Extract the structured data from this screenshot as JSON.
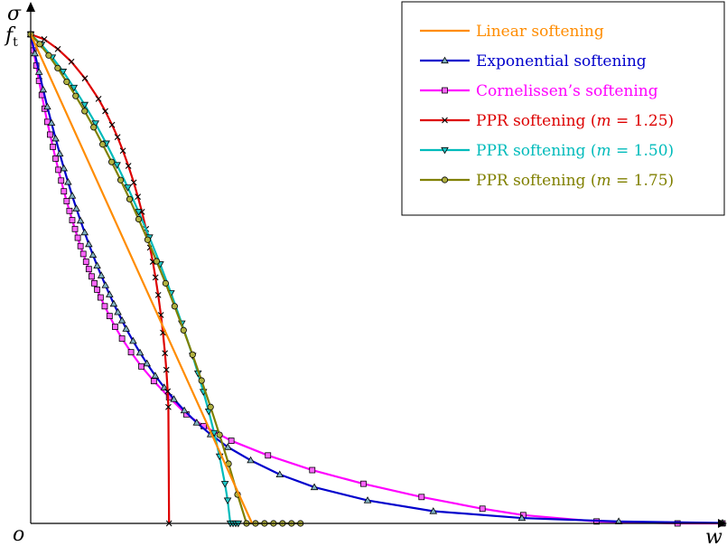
{
  "chart_data": {
    "type": "line",
    "title": "",
    "xlabel": "w",
    "ylabel": "σ",
    "y_tick_label": "f_t",
    "y_tick_label_main": "f",
    "y_tick_label_sub": "t",
    "origin_label": "o",
    "xlim": [
      0,
      1
    ],
    "ylim": [
      0,
      1
    ],
    "y_tick_value": 1.0,
    "legend_position": "top-right",
    "series": [
      {
        "name": "Linear softening",
        "label_plain": "Linear softening",
        "color": "#ff8c00",
        "marker": "none",
        "x": [
          0,
          0.32
        ],
        "y": [
          1.0,
          0.0
        ]
      },
      {
        "name": "Exponential softening",
        "label_plain": "Exponential softening",
        "color": "#0000cc",
        "marker": "triangle-up",
        "x": [
          0,
          0.006,
          0.012,
          0.018,
          0.024,
          0.03,
          0.036,
          0.042,
          0.048,
          0.054,
          0.06,
          0.066,
          0.072,
          0.078,
          0.084,
          0.09,
          0.096,
          0.102,
          0.108,
          0.114,
          0.12,
          0.126,
          0.132,
          0.138,
          0.148,
          0.158,
          0.168,
          0.18,
          0.193,
          0.207,
          0.222,
          0.24,
          0.26,
          0.285,
          0.318,
          0.36,
          0.41,
          0.487,
          0.582,
          0.71,
          0.85,
          1.0
        ],
        "y": [
          1.0,
          0.961,
          0.923,
          0.887,
          0.852,
          0.819,
          0.787,
          0.756,
          0.726,
          0.698,
          0.67,
          0.644,
          0.619,
          0.595,
          0.571,
          0.549,
          0.527,
          0.507,
          0.487,
          0.468,
          0.449,
          0.432,
          0.415,
          0.398,
          0.373,
          0.349,
          0.327,
          0.302,
          0.278,
          0.254,
          0.231,
          0.206,
          0.182,
          0.156,
          0.129,
          0.1,
          0.074,
          0.047,
          0.025,
          0.011,
          0.004,
          0.001
        ]
      },
      {
        "name": "Cornelissen's softening",
        "label_plain": "Cornelissen’s softening",
        "color": "#ff00ff",
        "marker": "square",
        "x": [
          0,
          0.004,
          0.008,
          0.012,
          0.016,
          0.02,
          0.024,
          0.028,
          0.032,
          0.036,
          0.04,
          0.044,
          0.048,
          0.052,
          0.056,
          0.06,
          0.064,
          0.068,
          0.072,
          0.076,
          0.08,
          0.084,
          0.088,
          0.092,
          0.096,
          0.101,
          0.107,
          0.114,
          0.122,
          0.132,
          0.145,
          0.16,
          0.178,
          0.2,
          0.225,
          0.25,
          0.29,
          0.343,
          0.407,
          0.481,
          0.565,
          0.653,
          0.712,
          0.818,
          0.935,
          1.0
        ],
        "y": [
          1.0,
          0.967,
          0.936,
          0.905,
          0.876,
          0.848,
          0.821,
          0.795,
          0.77,
          0.746,
          0.723,
          0.701,
          0.679,
          0.659,
          0.639,
          0.62,
          0.602,
          0.584,
          0.567,
          0.551,
          0.535,
          0.52,
          0.505,
          0.491,
          0.478,
          0.462,
          0.444,
          0.424,
          0.402,
          0.378,
          0.35,
          0.321,
          0.291,
          0.258,
          0.223,
          0.199,
          0.169,
          0.139,
          0.109,
          0.081,
          0.054,
          0.03,
          0.017,
          0.004,
          0.0,
          0.0
        ]
      },
      {
        "name": "PPR softening (m = 1.25)",
        "label_plain": "PPR softening (",
        "m_label": "m",
        "m_value": "= 1.25",
        "close_paren": ")",
        "color": "#dd0000",
        "marker": "x",
        "x": [
          0,
          0.0196,
          0.0392,
          0.0588,
          0.0784,
          0.098,
          0.1078,
          0.1176,
          0.1255,
          0.1333,
          0.1412,
          0.149,
          0.1549,
          0.1608,
          0.1667,
          0.1725,
          0.1765,
          0.1804,
          0.1843,
          0.1882,
          0.1912,
          0.1941,
          0.1961,
          0.198,
          0.199,
          0.2
        ],
        "y": [
          1.0,
          0.99,
          0.97,
          0.944,
          0.91,
          0.868,
          0.843,
          0.815,
          0.79,
          0.762,
          0.731,
          0.697,
          0.668,
          0.637,
          0.602,
          0.564,
          0.535,
          0.503,
          0.467,
          0.426,
          0.39,
          0.348,
          0.314,
          0.27,
          0.238,
          0.0
        ]
      },
      {
        "name": "PPR softening (m = 1.50)",
        "label_plain": "PPR softening (",
        "m_label": "m",
        "m_value": "= 1.50",
        "close_paren": ")",
        "color": "#00bbbb",
        "marker": "triangle-down",
        "x": [
          0,
          0.0156,
          0.0312,
          0.0468,
          0.0624,
          0.078,
          0.0936,
          0.1092,
          0.1248,
          0.1404,
          0.156,
          0.1716,
          0.1872,
          0.2028,
          0.2184,
          0.234,
          0.2418,
          0.2496,
          0.2574,
          0.2652,
          0.273,
          0.2808,
          0.2847,
          0.2886,
          0.2925,
          0.2964,
          0.3
        ],
        "y": [
          1.0,
          0.979,
          0.953,
          0.924,
          0.891,
          0.856,
          0.818,
          0.777,
          0.733,
          0.687,
          0.637,
          0.585,
          0.53,
          0.471,
          0.409,
          0.343,
          0.307,
          0.269,
          0.229,
          0.185,
          0.137,
          0.081,
          0.047,
          0.0,
          0.0,
          0.0,
          0.0
        ]
      },
      {
        "name": "PPR softening (m = 1.75)",
        "label_plain": "PPR softening (",
        "m_label": "m",
        "m_value": "= 1.75",
        "close_paren": ")",
        "color": "#808000",
        "marker": "circle",
        "x": [
          0,
          0.013,
          0.026,
          0.039,
          0.052,
          0.065,
          0.078,
          0.091,
          0.104,
          0.117,
          0.13,
          0.143,
          0.156,
          0.169,
          0.182,
          0.195,
          0.208,
          0.221,
          0.234,
          0.247,
          0.26,
          0.273,
          0.286,
          0.299,
          0.312,
          0.325,
          0.338,
          0.351,
          0.364,
          0.377,
          0.39
        ],
        "y": [
          1.0,
          0.98,
          0.957,
          0.931,
          0.903,
          0.874,
          0.843,
          0.81,
          0.775,
          0.739,
          0.702,
          0.663,
          0.622,
          0.58,
          0.536,
          0.491,
          0.444,
          0.395,
          0.345,
          0.292,
          0.238,
          0.181,
          0.122,
          0.059,
          0.0,
          0.0,
          0.0,
          0.0,
          0.0,
          0.0,
          0.0
        ]
      }
    ]
  }
}
